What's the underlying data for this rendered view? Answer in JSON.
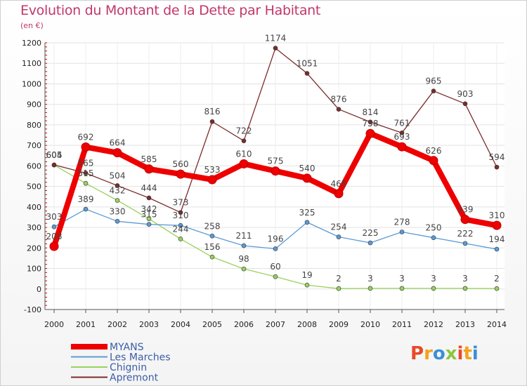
{
  "header": {
    "title": "Evolution du Montant de la Dette par Habitant",
    "unit": "(en €)"
  },
  "logo": {
    "text": "Proxiti",
    "colors": [
      "#e8492b",
      "#f2a31b",
      "#3a8fd9",
      "#8cc63f",
      "#e8492b",
      "#f2a31b",
      "#3a8fd9"
    ]
  },
  "chart_data": {
    "type": "line",
    "title": "Evolution du Montant de la Dette par Habitant",
    "ylabel": "(en €)",
    "xlabel": "",
    "x": [
      "2000",
      "2001",
      "2002",
      "2003",
      "2004",
      "2005",
      "2006",
      "2007",
      "2008",
      "2009",
      "2010",
      "2011",
      "2012",
      "2013",
      "2014"
    ],
    "ylim": [
      -100,
      1200
    ],
    "yticks": [
      -100,
      0,
      100,
      200,
      300,
      400,
      500,
      600,
      700,
      800,
      900,
      1000,
      1100,
      1200
    ],
    "grid": true,
    "legend": "bottom-left",
    "series": [
      {
        "name": "MYANS",
        "color": "#ee0000",
        "values": [
          208,
          692,
          664,
          585,
          560,
          533,
          610,
          575,
          540,
          465,
          758,
          693,
          626,
          339,
          310
        ],
        "labels": [
          "208",
          "692",
          "664",
          "585",
          "560",
          "533",
          "610",
          "575",
          "540",
          "465",
          "758",
          "693",
          "626",
          "339",
          "310"
        ]
      },
      {
        "name": "Les Marches",
        "color": "#5b9bd5",
        "values": [
          303,
          389,
          330,
          315,
          310,
          258,
          211,
          196,
          325,
          254,
          225,
          278,
          250,
          222,
          194
        ],
        "labels": [
          "303",
          "389",
          "330",
          "315",
          "310",
          "258",
          "211",
          "196",
          "325",
          "254",
          "225",
          "278",
          "250",
          "222",
          "194"
        ]
      },
      {
        "name": "Chignin",
        "color": "#99d15c",
        "values": [
          604,
          515,
          432,
          342,
          244,
          156,
          98,
          60,
          19,
          2,
          3,
          3,
          3,
          3,
          2
        ],
        "labels": [
          "604",
          "515",
          "432",
          "342",
          "244",
          "156",
          "98",
          "60",
          "19",
          "2",
          "3",
          "3",
          "3",
          "3",
          "2"
        ]
      },
      {
        "name": "Apremont",
        "color": "#7b2c2c",
        "values": [
          605,
          565,
          504,
          444,
          373,
          816,
          722,
          1174,
          1051,
          876,
          814,
          761,
          965,
          903,
          594
        ],
        "labels": [
          "605",
          "565",
          "504",
          "444",
          "373",
          "816",
          "722",
          "1174",
          "1051",
          "876",
          "814",
          "761",
          "965",
          "903",
          "594"
        ]
      }
    ]
  }
}
